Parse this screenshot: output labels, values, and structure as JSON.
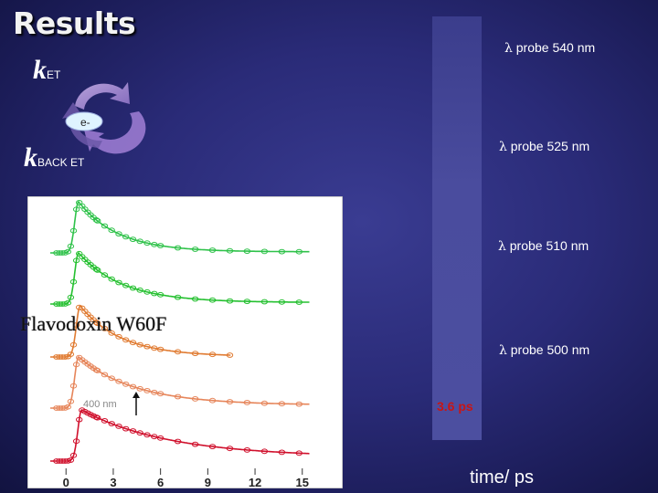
{
  "header": {
    "title": "Results"
  },
  "scheme": {
    "k_et": {
      "k": "k",
      "sub": "ET"
    },
    "k_back": {
      "k": "k",
      "sub": "BACK ET"
    },
    "electron": "e-",
    "cycle_colors": [
      "#b89ad8",
      "#8a6cc0"
    ]
  },
  "probes": [
    {
      "lambda": "λ",
      "label": "probe 540 nm"
    },
    {
      "lambda": "λ",
      "label": "probe 525 nm"
    },
    {
      "lambda": "λ",
      "label": "probe 510 nm"
    },
    {
      "lambda": "λ",
      "label": "probe 500 nm"
    }
  ],
  "annotations": {
    "protein": "Flavodoxin W60F",
    "reference": "400 nm",
    "time_constant": "3.6 ps",
    "axis_title": "time/ ps"
  },
  "chart_data": {
    "type": "line",
    "xlabel": "time/ ps",
    "x_ticks": [
      0,
      3,
      6,
      9,
      12,
      15
    ],
    "xlim": [
      -1,
      16
    ],
    "series": [
      {
        "color": "#2fc24a",
        "peak_t": 0.8,
        "tau": 2.5,
        "offset": 0.02,
        "t_end": 15.5
      },
      {
        "color": "#25c030",
        "peak_t": 0.8,
        "tau": 2.8,
        "offset": 0.03,
        "t_end": 15.5
      },
      {
        "color": "#e07a30",
        "peak_t": 0.9,
        "tau": 2.6,
        "offset": 0.01,
        "t_end": 10.5
      },
      {
        "color": "#e6855a",
        "peak_t": 0.8,
        "tau": 3.6,
        "offset": 0.06,
        "t_end": 15.5
      },
      {
        "color": "#d0102c",
        "peak_t": 1.0,
        "tau": 5.5,
        "offset": 0.08,
        "t_end": 15.5
      }
    ]
  }
}
